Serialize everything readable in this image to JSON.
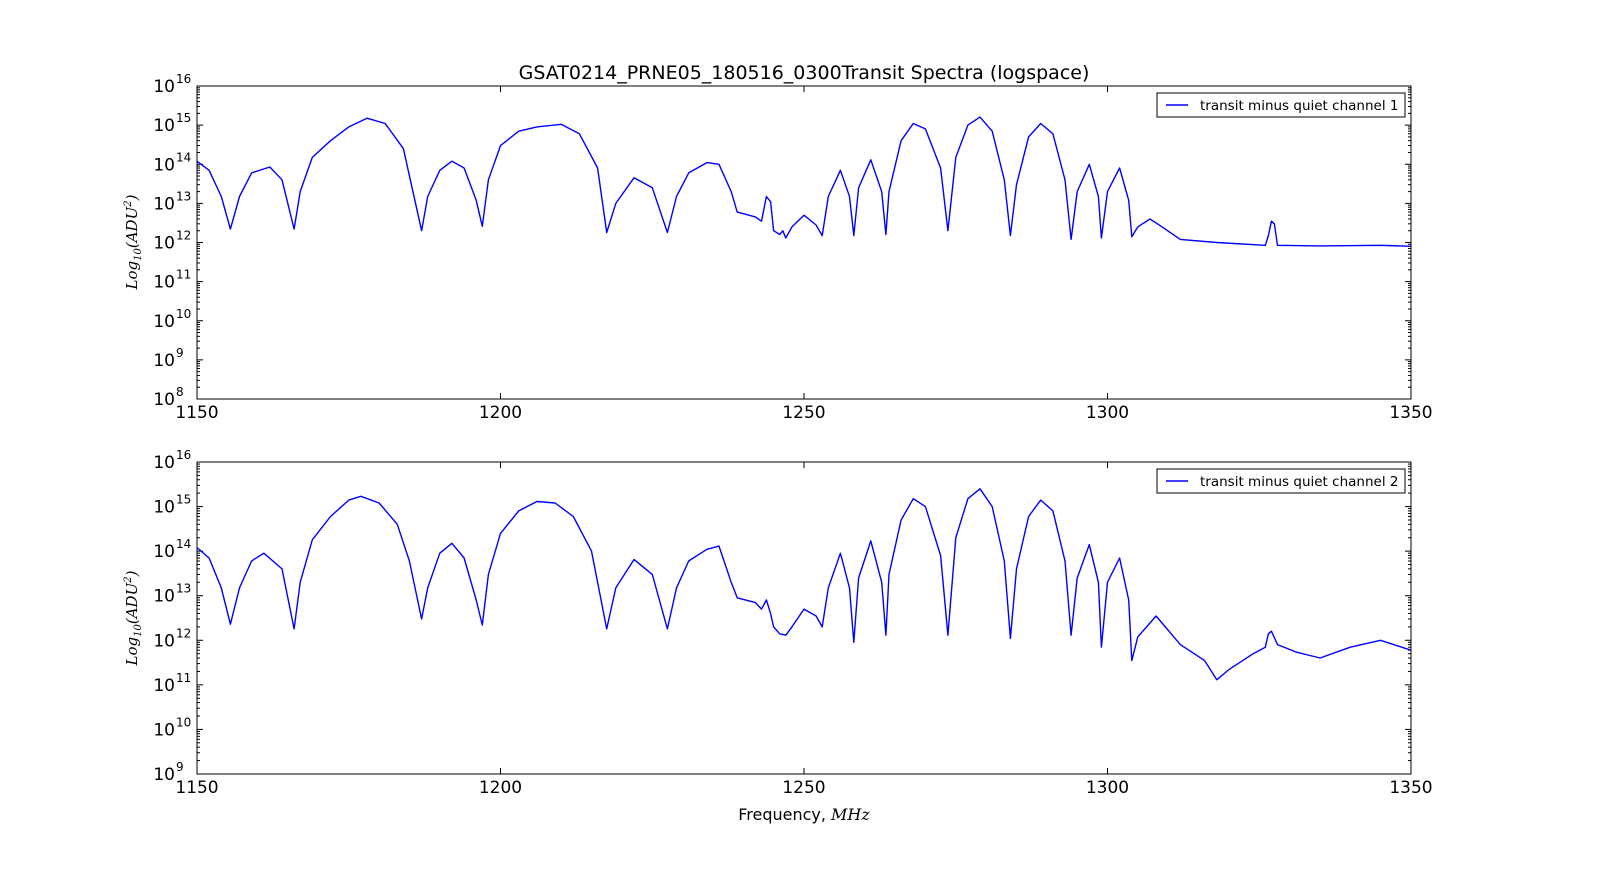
{
  "chart_data": [
    {
      "type": "line",
      "title": "GSAT0214_PRNE05_180516_0300Transit Spectra (logspace)",
      "ylabel": "Log10(ADU^2)",
      "ylabel_parts": {
        "base": "Log",
        "sub": "10",
        "inner": "(ADU",
        "sup": "2",
        "close": ")"
      },
      "xlabel": "",
      "xlim": [
        1150,
        1350
      ],
      "ylim": [
        100000000.0,
        1e+16
      ],
      "yscale": "log",
      "xticks": [
        "1150",
        "1200",
        "1250",
        "1300",
        "1350"
      ],
      "yticks": [
        {
          "base": "10",
          "exp": "8"
        },
        {
          "base": "10",
          "exp": "9"
        },
        {
          "base": "10",
          "exp": "10"
        },
        {
          "base": "10",
          "exp": "11"
        },
        {
          "base": "10",
          "exp": "12"
        },
        {
          "base": "10",
          "exp": "13"
        },
        {
          "base": "10",
          "exp": "14"
        },
        {
          "base": "10",
          "exp": "15"
        },
        {
          "base": "10",
          "exp": "16"
        }
      ],
      "legend": {
        "placement": "top-right",
        "entries": [
          "transit minus quiet channel 1"
        ]
      },
      "grid": false,
      "series": [
        {
          "name": "transit minus quiet channel 1",
          "color": "#0000ff",
          "x": [
            1150,
            1152,
            1154,
            1155.5,
            1157,
            1159,
            1162,
            1164,
            1166,
            1167,
            1169,
            1172,
            1175,
            1178,
            1181,
            1184,
            1187,
            1188,
            1190,
            1192,
            1194,
            1196,
            1197,
            1198,
            1200,
            1203,
            1206,
            1210,
            1213,
            1216,
            1217.5,
            1219,
            1222,
            1225,
            1227.5,
            1229,
            1231,
            1234,
            1236,
            1238,
            1239,
            1242,
            1243,
            1243.8,
            1244.5,
            1245,
            1246,
            1246.5,
            1247,
            1248,
            1250,
            1252,
            1253,
            1254,
            1256,
            1257.5,
            1258.2,
            1259,
            1261,
            1262.8,
            1263.5,
            1264,
            1266,
            1268,
            1270,
            1272.5,
            1273.7,
            1275,
            1277,
            1279,
            1281,
            1283,
            1284,
            1285,
            1287,
            1289,
            1291,
            1293,
            1294,
            1295,
            1297,
            1298.5,
            1299,
            1300,
            1302,
            1303.5,
            1304,
            1305,
            1307,
            1309,
            1312,
            1318,
            1326,
            1326.5,
            1327,
            1327.5,
            1328,
            1335,
            1345,
            1350
          ],
          "y": [
            120000000000000.0,
            70000000000000.0,
            15000000000000.0,
            2200000000000.0,
            15000000000000.0,
            60000000000000.0,
            85000000000000.0,
            40000000000000.0,
            2200000000000.0,
            20000000000000.0,
            150000000000000.0,
            400000000000000.0,
            900000000000000.0,
            1500000000000000.0,
            1100000000000000.0,
            250000000000000.0,
            2000000000000.0,
            15000000000000.0,
            70000000000000.0,
            120000000000000.0,
            80000000000000.0,
            12000000000000.0,
            2600000000000.0,
            40000000000000.0,
            300000000000000.0,
            700000000000000.0,
            900000000000000.0,
            1050000000000000.0,
            600000000000000.0,
            80000000000000.0,
            1800000000000.0,
            10000000000000.0,
            45000000000000.0,
            25000000000000.0,
            1800000000000.0,
            15000000000000.0,
            60000000000000.0,
            110000000000000.0,
            100000000000000.0,
            20000000000000.0,
            6000000000000.0,
            4500000000000.0,
            3500000000000.0,
            15000000000000.0,
            11000000000000.0,
            2000000000000.0,
            1600000000000.0,
            2000000000000.0,
            1300000000000.0,
            2500000000000.0,
            5000000000000.0,
            2800000000000.0,
            1500000000000.0,
            15000000000000.0,
            70000000000000.0,
            15000000000000.0,
            1500000000000.0,
            25000000000000.0,
            130000000000000.0,
            20000000000000.0,
            1600000000000.0,
            20000000000000.0,
            400000000000000.0,
            1100000000000000.0,
            800000000000000.0,
            80000000000000.0,
            2000000000000.0,
            150000000000000.0,
            1000000000000000.0,
            1600000000000000.0,
            700000000000000.0,
            40000000000000.0,
            1500000000000.0,
            30000000000000.0,
            500000000000000.0,
            1100000000000000.0,
            600000000000000.0,
            40000000000000.0,
            1200000000000.0,
            20000000000000.0,
            100000000000000.0,
            15000000000000.0,
            1300000000000.0,
            20000000000000.0,
            80000000000000.0,
            12000000000000.0,
            1400000000000.0,
            2500000000000.0,
            4000000000000.0,
            2500000000000.0,
            1200000000000.0,
            1000000000000.0,
            850000000000.0,
            1500000000000.0,
            3500000000000.0,
            3000000000000.0,
            850000000000.0,
            820000000000.0,
            850000000000.0,
            800000000000.0
          ]
        }
      ]
    },
    {
      "type": "line",
      "title": "",
      "ylabel": "Log10(ADU^2)",
      "ylabel_parts": {
        "base": "Log",
        "sub": "10",
        "inner": "(ADU",
        "sup": "2",
        "close": ")"
      },
      "xlabel": "Frequency, MHz",
      "xlabel_parts": {
        "text": "Frequency, ",
        "unit": "MHz"
      },
      "xlim": [
        1150,
        1350
      ],
      "ylim": [
        1000000000.0,
        1e+16
      ],
      "yscale": "log",
      "xticks": [
        "1150",
        "1200",
        "1250",
        "1300",
        "1350"
      ],
      "yticks": [
        {
          "base": "10",
          "exp": "9"
        },
        {
          "base": "10",
          "exp": "10"
        },
        {
          "base": "10",
          "exp": "11"
        },
        {
          "base": "10",
          "exp": "12"
        },
        {
          "base": "10",
          "exp": "13"
        },
        {
          "base": "10",
          "exp": "14"
        },
        {
          "base": "10",
          "exp": "15"
        },
        {
          "base": "10",
          "exp": "16"
        }
      ],
      "legend": {
        "placement": "top-right",
        "entries": [
          "transit minus quiet channel 2"
        ]
      },
      "grid": false,
      "series": [
        {
          "name": "transit minus quiet channel 2",
          "color": "#0000ff",
          "x": [
            1150,
            1152,
            1154,
            1155.5,
            1157,
            1159,
            1161,
            1164,
            1166,
            1167,
            1169,
            1172,
            1175,
            1177,
            1180,
            1183,
            1185,
            1187,
            1188,
            1190,
            1192,
            1194,
            1196,
            1197,
            1198,
            1200,
            1203,
            1206,
            1209,
            1212,
            1215,
            1217.5,
            1219,
            1222,
            1225,
            1227.5,
            1229,
            1231,
            1234,
            1236,
            1238,
            1239,
            1242,
            1243,
            1243.8,
            1244.5,
            1245,
            1246,
            1247,
            1248,
            1250,
            1252,
            1253,
            1254,
            1256,
            1257.5,
            1258.2,
            1259,
            1261,
            1262.8,
            1263.5,
            1264,
            1266,
            1268,
            1270,
            1272.5,
            1273.7,
            1275,
            1277,
            1279,
            1281,
            1283,
            1284,
            1285,
            1287,
            1289,
            1291,
            1293,
            1294,
            1295,
            1297,
            1298.5,
            1299,
            1300,
            1302,
            1303.5,
            1304,
            1305,
            1308,
            1312,
            1316,
            1318,
            1320,
            1324,
            1326,
            1326.5,
            1327,
            1328,
            1331,
            1335,
            1340,
            1345,
            1350
          ],
          "y": [
            120000000000000.0,
            70000000000000.0,
            15000000000000.0,
            2300000000000.0,
            15000000000000.0,
            60000000000000.0,
            90000000000000.0,
            40000000000000.0,
            1800000000000.0,
            20000000000000.0,
            180000000000000.0,
            600000000000000.0,
            1400000000000000.0,
            1700000000000000.0,
            1200000000000000.0,
            400000000000000.0,
            60000000000000.0,
            3000000000000.0,
            15000000000000.0,
            90000000000000.0,
            150000000000000.0,
            70000000000000.0,
            8000000000000.0,
            2200000000000.0,
            30000000000000.0,
            250000000000000.0,
            800000000000000.0,
            1300000000000000.0,
            1200000000000000.0,
            600000000000000.0,
            100000000000000.0,
            1800000000000.0,
            15000000000000.0,
            65000000000000.0,
            30000000000000.0,
            1800000000000.0,
            15000000000000.0,
            60000000000000.0,
            110000000000000.0,
            130000000000000.0,
            20000000000000.0,
            9000000000000.0,
            7000000000000.0,
            5000000000000.0,
            8000000000000.0,
            4000000000000.0,
            2000000000000.0,
            1400000000000.0,
            1300000000000.0,
            2000000000000.0,
            5000000000000.0,
            3500000000000.0,
            2000000000000.0,
            15000000000000.0,
            90000000000000.0,
            15000000000000.0,
            900000000000.0,
            25000000000000.0,
            170000000000000.0,
            20000000000000.0,
            1300000000000.0,
            30000000000000.0,
            500000000000000.0,
            1500000000000000.0,
            1000000000000000.0,
            80000000000000.0,
            1300000000000.0,
            200000000000000.0,
            1500000000000000.0,
            2500000000000000.0,
            1000000000000000.0,
            60000000000000.0,
            1100000000000.0,
            40000000000000.0,
            600000000000000.0,
            1400000000000000.0,
            800000000000000.0,
            60000000000000.0,
            1300000000000.0,
            25000000000000.0,
            140000000000000.0,
            20000000000000.0,
            700000000000.0,
            20000000000000.0,
            70000000000000.0,
            8000000000000.0,
            350000000000.0,
            1200000000000.0,
            3500000000000.0,
            800000000000.0,
            350000000000.0,
            130000000000.0,
            220000000000.0,
            500000000000.0,
            700000000000.0,
            1400000000000.0,
            1600000000000.0,
            800000000000.0,
            550000000000.0,
            400000000000.0,
            700000000000.0,
            1000000000000.0,
            600000000000.0
          ]
        }
      ]
    }
  ]
}
